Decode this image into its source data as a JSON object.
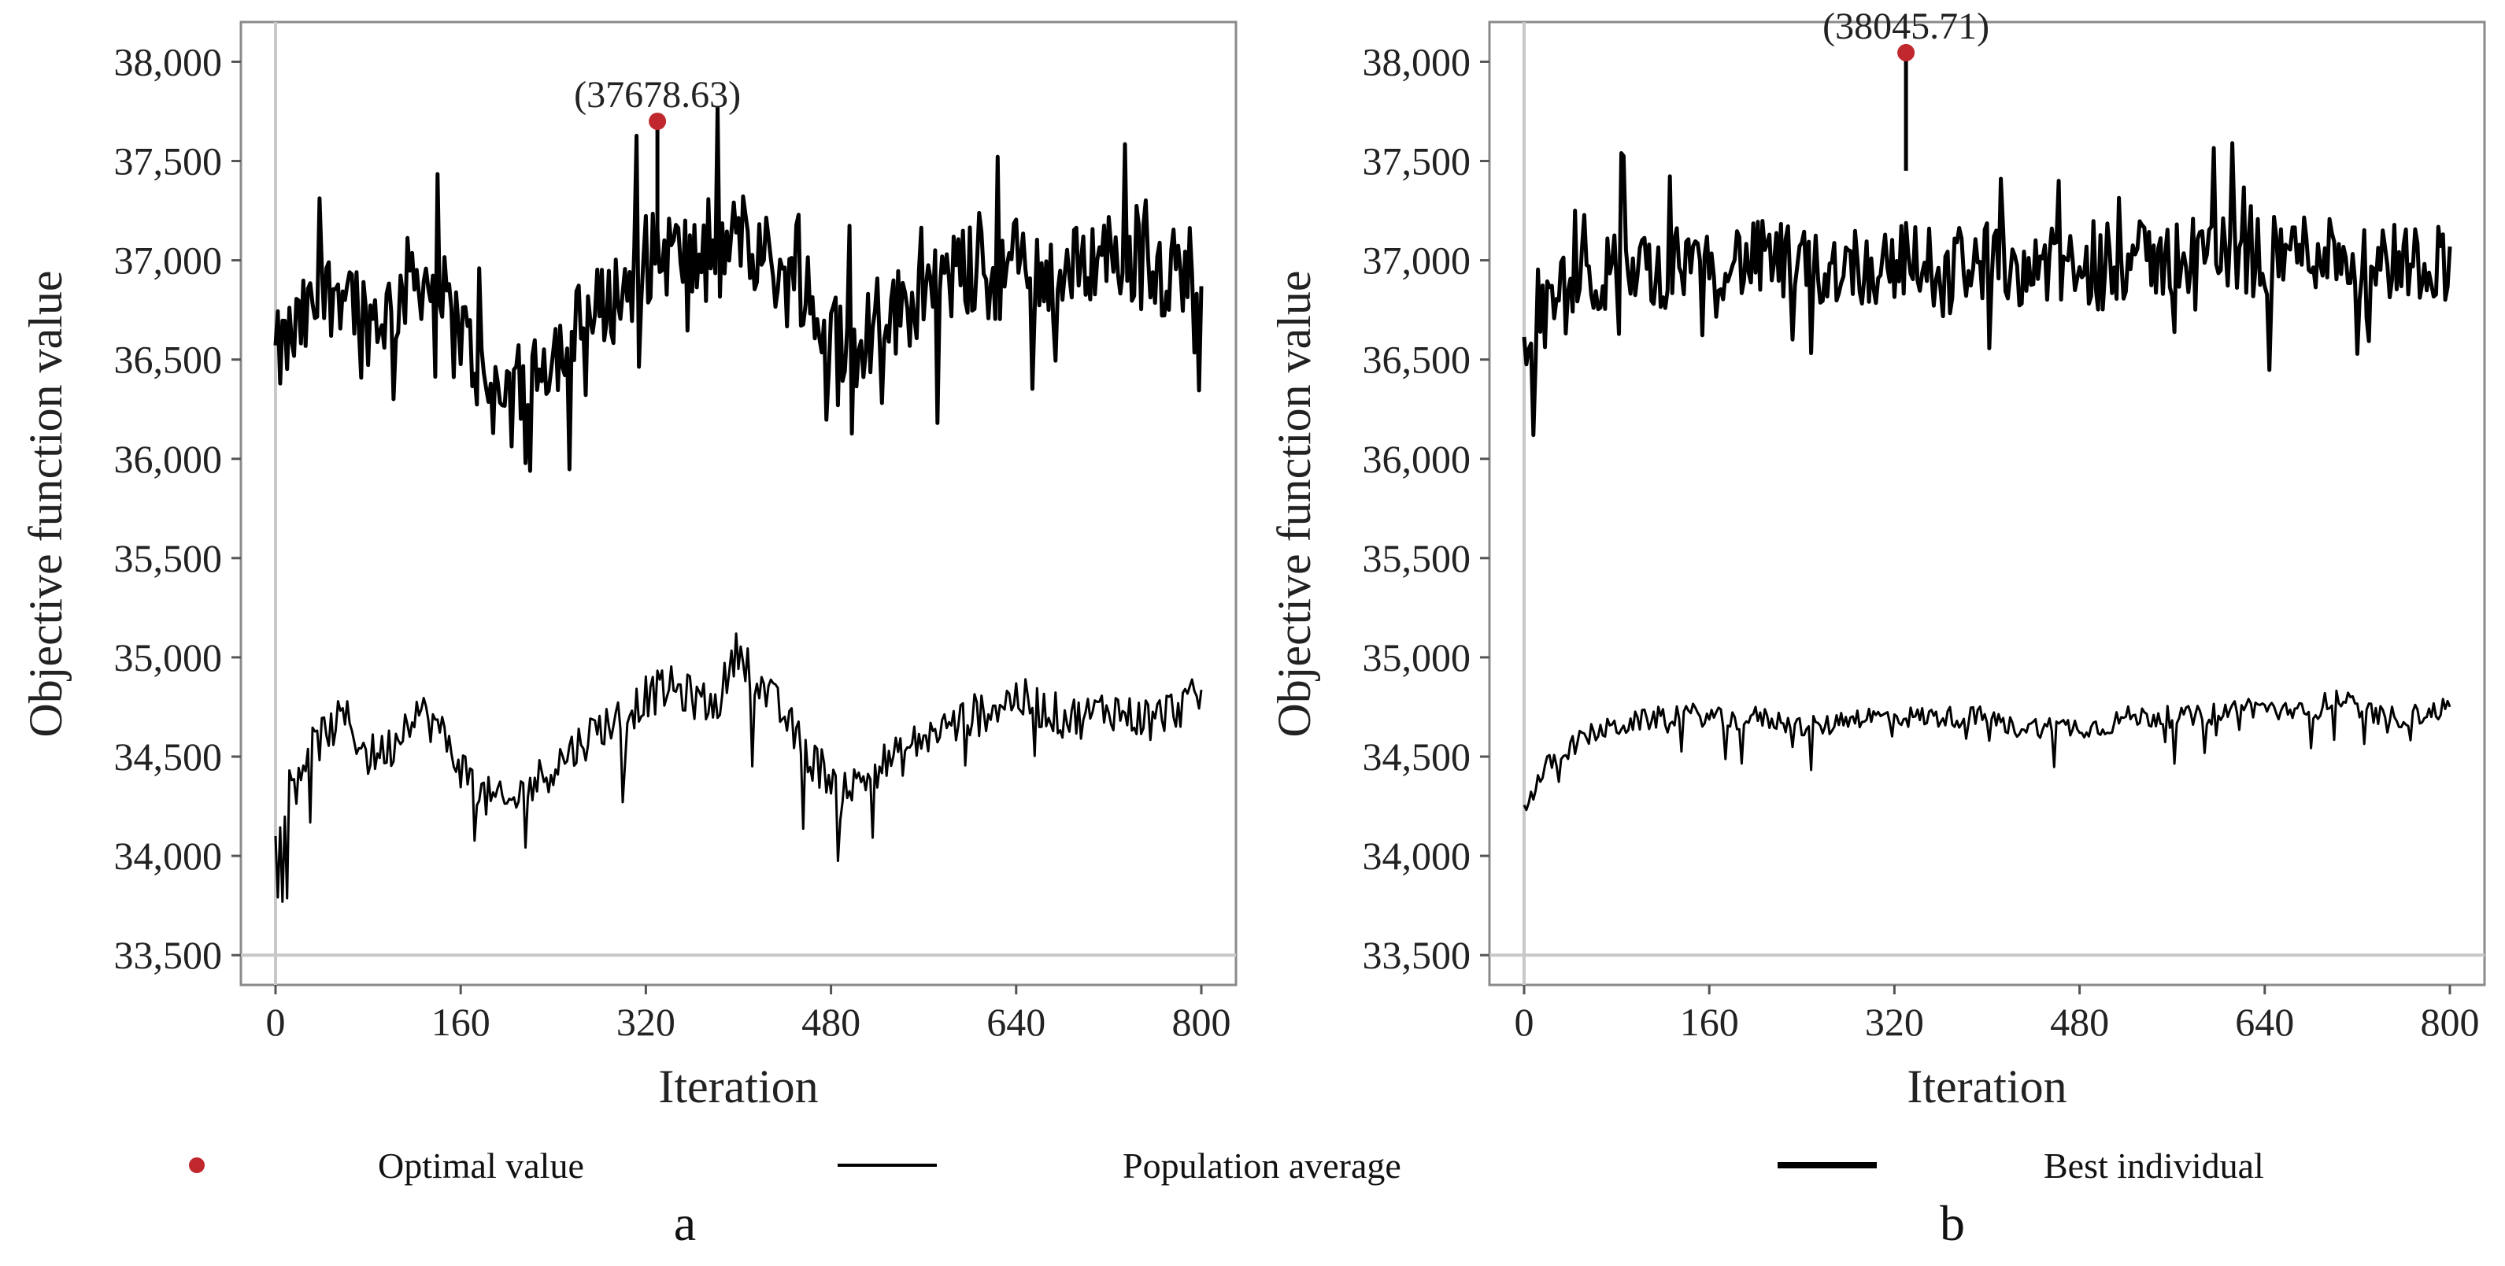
{
  "legend": {
    "optimal_label": "Optimal value",
    "average_label": "Population average",
    "best_label": "Best individual",
    "optimal_color": "#c0282d",
    "line_color": "#000000"
  },
  "chart_data": [
    {
      "type": "line",
      "panel_label": "a",
      "xlabel": "Iteration",
      "ylabel": "Objective function value",
      "xlim": [
        0,
        800
      ],
      "ylim": [
        33350,
        38200
      ],
      "xticks": [
        0,
        160,
        320,
        480,
        640,
        800
      ],
      "xtick_labels": [
        "0",
        "160",
        "320",
        "480",
        "640",
        "800"
      ],
      "yticks": [
        33500,
        34000,
        34500,
        35000,
        35500,
        36000,
        36500,
        37000,
        37500,
        38000
      ],
      "ytick_labels": [
        "33,500",
        "34,000",
        "34,500",
        "35,000",
        "35,500",
        "36,000",
        "36,500",
        "37,000",
        "37,500",
        "38,000"
      ],
      "annotation": "(37678.63)",
      "optimal_point": {
        "x": 330,
        "y": 37700
      },
      "series": [
        {
          "name": "Best individual",
          "x": [
            0,
            20,
            40,
            60,
            80,
            100,
            120,
            140,
            160,
            180,
            200,
            220,
            240,
            260,
            280,
            300,
            320,
            340,
            360,
            380,
            400,
            420,
            440,
            460,
            480,
            500,
            520,
            540,
            560,
            580,
            600,
            620,
            640,
            660,
            680,
            700,
            720,
            740,
            760,
            780,
            800
          ],
          "values": [
            36500,
            36650,
            36800,
            36900,
            36700,
            36750,
            36950,
            36850,
            36650,
            36400,
            36250,
            36450,
            36550,
            36650,
            36750,
            36850,
            37000,
            37050,
            37000,
            36950,
            37150,
            37050,
            36900,
            36750,
            36650,
            36550,
            36700,
            36750,
            36850,
            36900,
            36950,
            36900,
            37000,
            36950,
            36900,
            37000,
            37050,
            37000,
            36950,
            36950,
            37000
          ],
          "spread": 230
        },
        {
          "name": "Population average",
          "x": [
            0,
            20,
            40,
            60,
            80,
            100,
            120,
            140,
            160,
            180,
            200,
            220,
            240,
            260,
            280,
            300,
            320,
            340,
            360,
            380,
            400,
            420,
            440,
            460,
            480,
            500,
            520,
            540,
            560,
            580,
            600,
            620,
            640,
            660,
            680,
            700,
            720,
            740,
            760,
            780,
            800
          ],
          "values": [
            34200,
            34450,
            34600,
            34700,
            34500,
            34550,
            34750,
            34650,
            34450,
            34300,
            34250,
            34350,
            34450,
            34550,
            34650,
            34700,
            34800,
            34850,
            34800,
            34750,
            35050,
            34850,
            34700,
            34500,
            34400,
            34350,
            34450,
            34500,
            34600,
            34650,
            34700,
            34750,
            34800,
            34750,
            34700,
            34700,
            34750,
            34700,
            34700,
            34750,
            34800
          ],
          "spread": 110
        }
      ]
    },
    {
      "type": "line",
      "panel_label": "b",
      "xlabel": "Iteration",
      "ylabel": "Objective function value",
      "xlim": [
        0,
        800
      ],
      "ylim": [
        33350,
        38200
      ],
      "xticks": [
        0,
        160,
        320,
        480,
        640,
        800
      ],
      "xtick_labels": [
        "0",
        "160",
        "320",
        "480",
        "640",
        "800"
      ],
      "yticks": [
        33500,
        34000,
        34500,
        35000,
        35500,
        36000,
        36500,
        37000,
        37500,
        38000
      ],
      "ytick_labels": [
        "33,500",
        "34,000",
        "34,500",
        "35,000",
        "35,500",
        "36,000",
        "36,500",
        "37,000",
        "37,500",
        "38,000"
      ],
      "annotation": "(38045.71)",
      "optimal_point": {
        "x": 330,
        "y": 38045.71
      },
      "series": [
        {
          "name": "Best individual",
          "x": [
            0,
            20,
            40,
            60,
            80,
            100,
            120,
            140,
            160,
            180,
            200,
            220,
            240,
            260,
            280,
            300,
            320,
            340,
            360,
            380,
            400,
            420,
            440,
            460,
            480,
            500,
            520,
            540,
            560,
            580,
            600,
            620,
            640,
            660,
            680,
            700,
            720,
            740,
            760,
            780,
            800
          ],
          "values": [
            36500,
            36750,
            36850,
            36900,
            36950,
            36950,
            36950,
            37000,
            37000,
            37000,
            37000,
            37000,
            36950,
            36950,
            37000,
            36950,
            37000,
            37000,
            36950,
            37000,
            37000,
            36950,
            37000,
            36950,
            36950,
            36950,
            37000,
            37000,
            37000,
            37050,
            37050,
            37000,
            37000,
            37050,
            37050,
            37050,
            37000,
            37000,
            37000,
            37000,
            37000
          ],
          "spread": 200
        },
        {
          "name": "Population average",
          "x": [
            0,
            20,
            40,
            60,
            80,
            100,
            120,
            140,
            160,
            180,
            200,
            220,
            240,
            260,
            280,
            300,
            320,
            340,
            360,
            380,
            400,
            420,
            440,
            460,
            480,
            500,
            520,
            540,
            560,
            580,
            600,
            620,
            640,
            660,
            680,
            700,
            720,
            740,
            760,
            780,
            800
          ],
          "values": [
            34250,
            34450,
            34550,
            34620,
            34650,
            34680,
            34700,
            34720,
            34700,
            34680,
            34700,
            34680,
            34650,
            34650,
            34700,
            34700,
            34700,
            34700,
            34700,
            34700,
            34700,
            34650,
            34650,
            34650,
            34650,
            34650,
            34700,
            34700,
            34700,
            34700,
            34720,
            34750,
            34750,
            34720,
            34720,
            34800,
            34750,
            34700,
            34700,
            34720,
            34750
          ],
          "spread": 55
        }
      ]
    }
  ]
}
